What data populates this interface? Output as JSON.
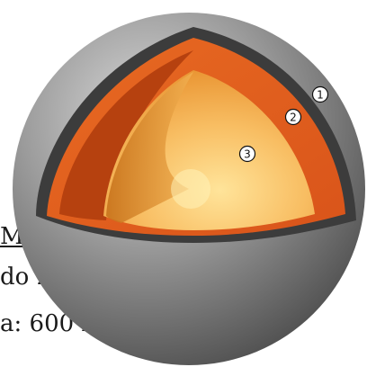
{
  "background_text": {
    "line1": "M",
    "line2": "do 2",
    "line3": "a: 600 k"
  },
  "layers": [
    {
      "marker": "1",
      "color": "#3a3a3a"
    },
    {
      "marker": "2",
      "color": "#e0601c"
    },
    {
      "marker": "3",
      "color": "#f6b35a"
    }
  ],
  "colors": {
    "outer_shell": "#8a8a8a",
    "mantle_outer": "#e25f1b",
    "mantle_shadow": "#b84310",
    "core": "#f8c06a"
  }
}
